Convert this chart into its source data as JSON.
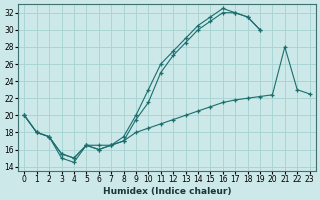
{
  "xlabel": "Humidex (Indice chaleur)",
  "bg_color": "#cce8e8",
  "grid_color": "#aad4d4",
  "line_color": "#1a6e6e",
  "xlim": [
    -0.5,
    23.5
  ],
  "ylim": [
    13.5,
    33
  ],
  "xticks": [
    0,
    1,
    2,
    3,
    4,
    5,
    6,
    7,
    8,
    9,
    10,
    11,
    12,
    13,
    14,
    15,
    16,
    17,
    18,
    19,
    20,
    21,
    22,
    23
  ],
  "yticks": [
    14,
    16,
    18,
    20,
    22,
    24,
    26,
    28,
    30,
    32
  ],
  "line1_x": [
    0,
    1,
    2,
    3,
    4,
    5,
    6,
    7,
    8,
    9,
    10,
    11,
    12,
    13,
    14,
    15,
    16,
    17,
    18,
    19
  ],
  "line1_y": [
    20,
    18,
    17.5,
    15,
    14.5,
    16.5,
    16.5,
    16.5,
    17,
    19.5,
    21.5,
    25,
    27,
    28.5,
    30,
    31,
    32,
    32,
    31.5,
    30
  ],
  "line2_x": [
    0,
    1,
    2,
    3,
    4,
    5,
    6,
    7,
    8,
    9,
    10,
    11,
    12,
    13,
    14,
    15,
    16,
    17,
    18,
    19
  ],
  "line2_y": [
    20,
    18,
    17.5,
    15.5,
    15,
    16.5,
    16,
    16.5,
    17.5,
    20,
    23,
    26,
    27.5,
    29,
    30.5,
    31.5,
    32.5,
    32,
    31.5,
    30
  ],
  "line3_x": [
    0,
    1,
    2,
    3,
    4,
    5,
    6,
    7,
    8,
    9,
    10,
    11,
    12,
    13,
    14,
    15,
    16,
    17,
    18,
    19,
    20,
    21,
    22,
    23
  ],
  "line3_y": [
    20,
    18,
    17.5,
    15.5,
    15,
    16.5,
    16,
    16.5,
    17,
    18,
    18.5,
    19,
    19.5,
    20,
    20.5,
    21,
    21.5,
    21.8,
    22,
    22.2,
    22.4,
    28,
    23,
    22.5
  ]
}
